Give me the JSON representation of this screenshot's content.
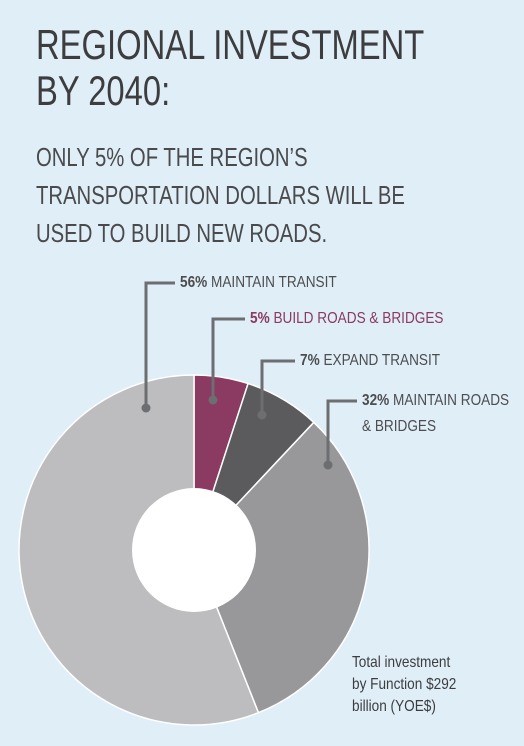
{
  "chart_data": {
    "type": "donut",
    "title": [
      "REGIONAL INVESTMENT",
      "BY 2040:"
    ],
    "subtitle": [
      "ONLY 5% OF THE REGION’S",
      "TRANSPORTATION DOLLARS WILL BE",
      "USED TO BUILD NEW ROADS."
    ],
    "categories": [
      "BUILD ROADS & BRIDGES",
      "EXPAND TRANSIT",
      "MAINTAIN ROADS & BRIDGES",
      "MAINTAIN TRANSIT"
    ],
    "values": [
      5,
      7,
      32,
      56
    ],
    "value_labels": [
      "5%",
      "7%",
      "32%",
      "56%"
    ],
    "colors": [
      "#8b3a62",
      "#5b5b5d",
      "#98989a",
      "#bdbdbf"
    ],
    "note": "Total investment by Function $292 billion (YOE$)"
  }
}
